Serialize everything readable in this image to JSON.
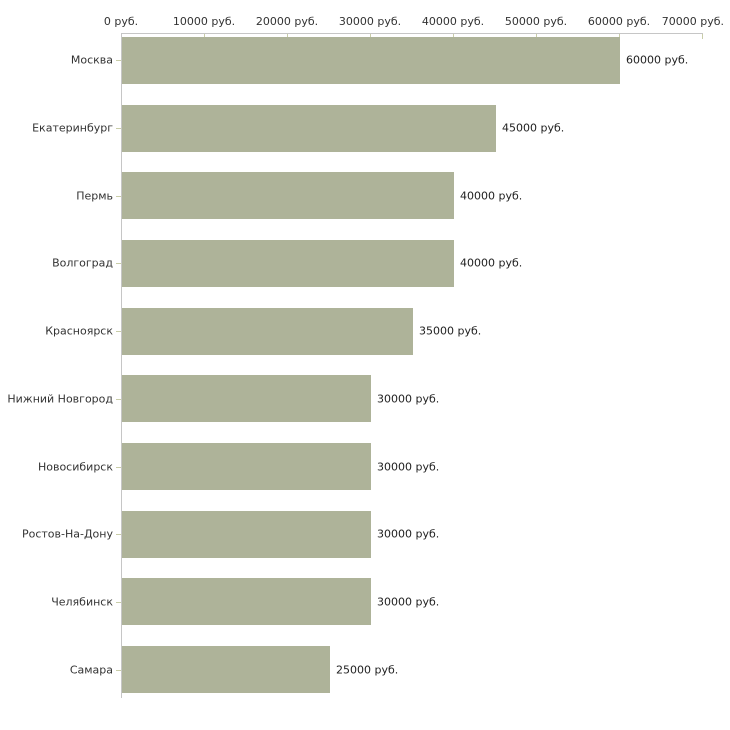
{
  "chart_data": {
    "type": "bar",
    "orientation": "horizontal",
    "title": "",
    "xlabel": "",
    "ylabel": "",
    "unit": "руб.",
    "categories": [
      "Москва",
      "Екатеринбург",
      "Пермь",
      "Волгоград",
      "Красноярск",
      "Нижний Новгород",
      "Новосибирск",
      "Ростов-На-Дону",
      "Челябинск",
      "Самара"
    ],
    "values": [
      60000,
      45000,
      40000,
      40000,
      35000,
      30000,
      30000,
      30000,
      30000,
      25000
    ],
    "value_labels": [
      "60000 руб.",
      "45000 руб.",
      "40000 руб.",
      "40000 руб.",
      "35000 руб.",
      "30000 руб.",
      "30000 руб.",
      "30000 руб.",
      "30000 руб.",
      "25000 руб."
    ],
    "x_axis": {
      "position": "top",
      "min": 0,
      "max": 70000,
      "ticks": [
        0,
        10000,
        20000,
        30000,
        40000,
        50000,
        60000,
        70000
      ],
      "tick_labels": [
        "0 руб.",
        "10000 руб.",
        "20000 руб.",
        "30000 руб.",
        "40000 руб.",
        "50000 руб.",
        "60000 руб.",
        "70000 руб."
      ]
    },
    "grid": false,
    "legend": false,
    "colors": {
      "bar": "#aeb399",
      "axis_line": "#c6c6c6",
      "tick_mark": "#c9cda8",
      "category_text": "#333333",
      "value_text": "#222222",
      "background": "#ffffff"
    }
  }
}
